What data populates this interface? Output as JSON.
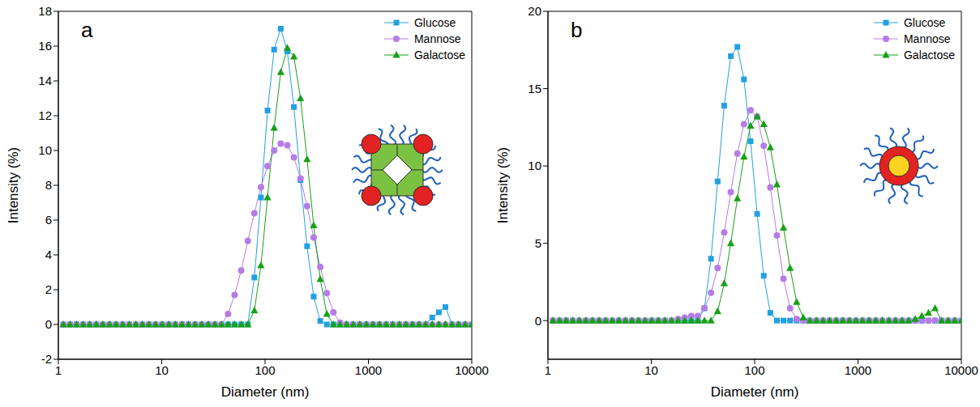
{
  "chart_data": [
    {
      "type": "line",
      "annotations": [
        "a"
      ],
      "xlabel": "Diameter (nm)",
      "ylabel": "Intensity (%)",
      "log": "x",
      "grid": false,
      "legend": "upper right",
      "xlim": [
        1,
        10000
      ],
      "xticks": [
        1,
        10,
        100,
        1000,
        10000
      ],
      "ylim": [
        -2,
        18
      ],
      "yticks": [
        -2,
        0,
        2,
        4,
        6,
        8,
        10,
        12,
        14,
        16,
        18
      ],
      "x": [
        1.117,
        1.294,
        1.499,
        1.736,
        2.01,
        2.328,
        2.696,
        3.122,
        3.615,
        4.187,
        4.849,
        5.615,
        6.503,
        7.531,
        8.721,
        10.1,
        11.7,
        13.54,
        15.69,
        18.17,
        21.04,
        24.36,
        28.21,
        32.67,
        37.84,
        43.82,
        50.75,
        58.77,
        68.06,
        78.82,
        91.28,
        105.7,
        122.4,
        141.8,
        164.2,
        190.1,
        220.2,
        255,
        295.3,
        342,
        396.1,
        458.7,
        531.2,
        615.1,
        712.4,
        825,
        955.4,
        1106,
        1281,
        1484,
        1718,
        1990,
        2305,
        2669,
        3091,
        3580,
        4145,
        4801,
        5560,
        6439,
        7456,
        8635,
        10000
      ],
      "series": [
        {
          "name": "Glucose",
          "color": "#22a0e2",
          "marker": "square",
          "line_style": "solid",
          "values": [
            0,
            0,
            0,
            0,
            0,
            0,
            0,
            0,
            0,
            0,
            0,
            0,
            0,
            0,
            0,
            0,
            0,
            0,
            0,
            0,
            0,
            0,
            0,
            0,
            0,
            0,
            0,
            0,
            0,
            2.7,
            7.3,
            12.3,
            15.8,
            17,
            15.7,
            12.5,
            8.3,
            4.5,
            1.6,
            0.2,
            0,
            0,
            0,
            0,
            0,
            0,
            0,
            0,
            0,
            0,
            0,
            0,
            0,
            0,
            0,
            0,
            0.4,
            0.7,
            1.0,
            0,
            0,
            0,
            0
          ]
        },
        {
          "name": "Mannose",
          "color": "#b57ce8",
          "marker": "circle",
          "line_style": "solid",
          "values": [
            0,
            0,
            0,
            0,
            0,
            0,
            0,
            0,
            0,
            0,
            0,
            0,
            0,
            0,
            0,
            0,
            0,
            0,
            0,
            0,
            0,
            0,
            0,
            0,
            0,
            0.6,
            1.7,
            3.1,
            4.8,
            6.4,
            7.9,
            9.1,
            10.0,
            10.4,
            10.3,
            9.6,
            8.4,
            6.8,
            5.0,
            3.3,
            1.8,
            0.7,
            0.1,
            0,
            0,
            0,
            0,
            0,
            0,
            0,
            0,
            0,
            0,
            0,
            0,
            0,
            0,
            0,
            0,
            0,
            0,
            0,
            0
          ]
        },
        {
          "name": "Galactose",
          "color": "#16a116",
          "marker": "triangle",
          "line_style": "solid",
          "values": [
            0,
            0,
            0,
            0,
            0,
            0,
            0,
            0,
            0,
            0,
            0,
            0,
            0,
            0,
            0,
            0,
            0,
            0,
            0,
            0,
            0,
            0,
            0,
            0,
            0,
            0,
            0,
            0,
            0,
            0.8,
            3.4,
            7.3,
            11.3,
            14.5,
            15.9,
            15.4,
            13.0,
            9.5,
            5.7,
            2.6,
            0.6,
            0,
            0,
            0,
            0,
            0,
            0,
            0,
            0,
            0,
            0,
            0,
            0,
            0,
            0,
            0,
            0,
            0,
            0,
            0,
            0,
            0,
            0
          ]
        }
      ]
    },
    {
      "type": "line",
      "annotations": [
        "b"
      ],
      "xlabel": "Diameter (nm)",
      "ylabel": "Intensity (%)",
      "log": "x",
      "grid": false,
      "legend": "upper right",
      "xlim": [
        1,
        10000
      ],
      "xticks": [
        1,
        10,
        100,
        1000,
        10000
      ],
      "ylim": [
        -2.5,
        20
      ],
      "yticks": [
        0,
        5,
        10,
        15,
        20
      ],
      "x": [
        1.117,
        1.294,
        1.499,
        1.736,
        2.01,
        2.328,
        2.696,
        3.122,
        3.615,
        4.187,
        4.849,
        5.615,
        6.503,
        7.531,
        8.721,
        10.1,
        11.7,
        13.54,
        15.69,
        18.17,
        21.04,
        24.36,
        28.21,
        32.67,
        37.84,
        43.82,
        50.75,
        58.77,
        68.06,
        78.82,
        91.28,
        105.7,
        122.4,
        141.8,
        164.2,
        190.1,
        220.2,
        255,
        295.3,
        342,
        396.1,
        458.7,
        531.2,
        615.1,
        712.4,
        825,
        955.4,
        1106,
        1281,
        1484,
        1718,
        1990,
        2305,
        2669,
        3091,
        3580,
        4145,
        4801,
        5560,
        6439,
        7456,
        8635,
        10000
      ],
      "series": [
        {
          "name": "Glucose",
          "color": "#22a0e2",
          "marker": "square",
          "line_style": "solid",
          "values": [
            0,
            0,
            0,
            0,
            0,
            0,
            0,
            0,
            0,
            0,
            0,
            0,
            0,
            0,
            0,
            0,
            0,
            0,
            0,
            0,
            0,
            0,
            0,
            0.8,
            4.0,
            9.0,
            13.9,
            17.1,
            17.7,
            15.6,
            11.6,
            6.9,
            2.9,
            0.5,
            0,
            0,
            0,
            0,
            0,
            0,
            0,
            0,
            0,
            0,
            0,
            0,
            0,
            0,
            0,
            0,
            0,
            0,
            0,
            0,
            0,
            0,
            0,
            0,
            0,
            0,
            0,
            0,
            0
          ]
        },
        {
          "name": "Mannose",
          "color": "#b57ce8",
          "marker": "circle",
          "line_style": "solid",
          "values": [
            0,
            0,
            0,
            0,
            0,
            0,
            0,
            0,
            0,
            0,
            0,
            0,
            0,
            0,
            0,
            0,
            0,
            0,
            0,
            0.1,
            0.2,
            0.3,
            0.3,
            0.8,
            1.8,
            3.4,
            5.7,
            8.3,
            10.8,
            12.7,
            13.6,
            13.2,
            11.3,
            8.6,
            5.5,
            2.7,
            0.8,
            0.1,
            0,
            0,
            0,
            0,
            0,
            0,
            0,
            0,
            0,
            0,
            0,
            0,
            0,
            0,
            0,
            0,
            0,
            0,
            0,
            0,
            0,
            0,
            0,
            0,
            0
          ]
        },
        {
          "name": "Galactose",
          "color": "#16a116",
          "marker": "triangle",
          "line_style": "solid",
          "values": [
            0,
            0,
            0,
            0,
            0,
            0,
            0,
            0,
            0,
            0,
            0,
            0,
            0,
            0,
            0,
            0,
            0,
            0,
            0,
            0,
            0,
            0,
            0,
            0,
            0,
            0.6,
            2.4,
            5.0,
            7.9,
            10.6,
            12.6,
            13.2,
            12.7,
            11.2,
            8.8,
            6.0,
            3.4,
            1.2,
            0.2,
            0,
            0,
            0,
            0,
            0,
            0,
            0,
            0,
            0,
            0,
            0,
            0,
            0,
            0,
            0,
            0,
            0.1,
            0.3,
            0.5,
            0.8,
            0,
            0,
            0,
            0
          ]
        }
      ]
    }
  ]
}
